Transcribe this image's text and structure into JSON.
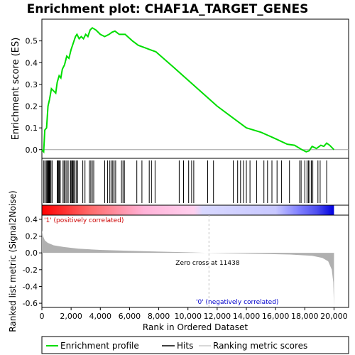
{
  "chart_data": {
    "type": "line",
    "title": "Enrichment plot: CHAF1A_TARGET_GENES",
    "es_panel": {
      "ylabel": "Enrichment score (ES)",
      "ylim": [
        -0.04,
        0.6
      ],
      "yticks": [
        "0.0",
        "0.1",
        "0.2",
        "0.3",
        "0.4",
        "0.5"
      ],
      "series_name": "Enrichment profile",
      "points": [
        [
          0,
          0.0
        ],
        [
          120,
          -0.01
        ],
        [
          200,
          0.09
        ],
        [
          320,
          0.1
        ],
        [
          420,
          0.2
        ],
        [
          520,
          0.23
        ],
        [
          650,
          0.28
        ],
        [
          800,
          0.27
        ],
        [
          950,
          0.26
        ],
        [
          1050,
          0.31
        ],
        [
          1180,
          0.34
        ],
        [
          1300,
          0.33
        ],
        [
          1400,
          0.37
        ],
        [
          1550,
          0.39
        ],
        [
          1700,
          0.43
        ],
        [
          1850,
          0.42
        ],
        [
          2000,
          0.46
        ],
        [
          2150,
          0.49
        ],
        [
          2300,
          0.52
        ],
        [
          2400,
          0.53
        ],
        [
          2550,
          0.51
        ],
        [
          2700,
          0.52
        ],
        [
          2850,
          0.51
        ],
        [
          3000,
          0.53
        ],
        [
          3150,
          0.52
        ],
        [
          3300,
          0.55
        ],
        [
          3450,
          0.56
        ],
        [
          3700,
          0.55
        ],
        [
          4000,
          0.53
        ],
        [
          4300,
          0.52
        ],
        [
          4600,
          0.53
        ],
        [
          4800,
          0.54
        ],
        [
          5000,
          0.545
        ],
        [
          5300,
          0.53
        ],
        [
          5700,
          0.53
        ],
        [
          6200,
          0.5
        ],
        [
          6600,
          0.48
        ],
        [
          7000,
          0.47
        ],
        [
          7400,
          0.46
        ],
        [
          7800,
          0.45
        ],
        [
          9000,
          0.38
        ],
        [
          10000,
          0.32
        ],
        [
          11000,
          0.26
        ],
        [
          12000,
          0.2
        ],
        [
          13000,
          0.15
        ],
        [
          14000,
          0.1
        ],
        [
          15000,
          0.08
        ],
        [
          16000,
          0.05
        ],
        [
          16800,
          0.025
        ],
        [
          17300,
          0.02
        ],
        [
          17800,
          0.0
        ],
        [
          18100,
          -0.01
        ],
        [
          18300,
          -0.005
        ],
        [
          18500,
          0.015
        ],
        [
          18800,
          0.005
        ],
        [
          19100,
          0.02
        ],
        [
          19300,
          0.015
        ],
        [
          19500,
          0.03
        ],
        [
          19700,
          0.02
        ],
        [
          20000,
          0.0
        ]
      ]
    },
    "hits_panel": {
      "series_name": "Hits",
      "positions": [
        130,
        210,
        300,
        360,
        420,
        460,
        510,
        560,
        620,
        700,
        1050,
        1100,
        1150,
        1200,
        1260,
        1450,
        1520,
        1600,
        1700,
        1800,
        1950,
        2000,
        2060,
        2120,
        2180,
        2250,
        2350,
        2450,
        2800,
        2950,
        3250,
        3350,
        3450,
        3550,
        4300,
        4500,
        4650,
        4750,
        4850,
        4950,
        5050,
        5450,
        5550,
        5650,
        6500,
        6850,
        7350,
        7500,
        7750,
        9400,
        9700,
        10050,
        10250,
        10400,
        11350,
        11750,
        13100,
        13400,
        13600,
        13800,
        14000,
        14250,
        14700,
        15200,
        15450,
        15750,
        16100,
        16400,
        16950,
        17650,
        17750,
        18000,
        18150,
        18250,
        18350,
        18450,
        18550,
        18900,
        19050,
        19500
      ],
      "label_positive": "'1' (positively correlated)",
      "label_negative": "'0' (negatively correlated)"
    },
    "metric_panel": {
      "ylabel": "Ranked list metric (Signal2Noise)",
      "ylim": [
        -0.65,
        0.45
      ],
      "yticks": [
        "0.4",
        "0.2",
        "0.0",
        "-0.2",
        "-0.4",
        "-0.6"
      ],
      "zero_cross_label": "Zero cross at 11438",
      "zero_cross": 11438,
      "points": [
        [
          0,
          0.27
        ],
        [
          80,
          0.2
        ],
        [
          200,
          0.15
        ],
        [
          400,
          0.12
        ],
        [
          800,
          0.09
        ],
        [
          1500,
          0.07
        ],
        [
          2500,
          0.05
        ],
        [
          4000,
          0.035
        ],
        [
          6000,
          0.025
        ],
        [
          8000,
          0.015
        ],
        [
          10000,
          0.007
        ],
        [
          11438,
          0.0
        ],
        [
          13000,
          -0.006
        ],
        [
          15000,
          -0.012
        ],
        [
          17000,
          -0.02
        ],
        [
          18500,
          -0.035
        ],
        [
          19200,
          -0.06
        ],
        [
          19600,
          -0.1
        ],
        [
          19850,
          -0.2
        ],
        [
          19950,
          -0.35
        ],
        [
          20000,
          -0.65
        ]
      ]
    },
    "xlabel": "Rank in Ordered Dataset",
    "xlim": [
      0,
      21000
    ],
    "xticks": [
      {
        "value": 0,
        "label": "0"
      },
      {
        "value": 2000,
        "label": "2,000"
      },
      {
        "value": 4000,
        "label": "4,000"
      },
      {
        "value": 6000,
        "label": "6,000"
      },
      {
        "value": 8000,
        "label": "8,000"
      },
      {
        "value": 10000,
        "label": "10,000"
      },
      {
        "value": 12000,
        "label": "12,000"
      },
      {
        "value": 14000,
        "label": "14,000"
      },
      {
        "value": 16000,
        "label": "16,000"
      },
      {
        "value": 18000,
        "label": "18,000"
      },
      {
        "value": 20000,
        "label": "20,000"
      }
    ],
    "legend": {
      "placement": "bottom",
      "entries": [
        "Enrichment profile",
        "Hits",
        "Ranking metric scores"
      ]
    },
    "colors": {
      "profile": "#00dd00",
      "hits": "#000000",
      "metric": "#b0b0b0",
      "zero_line": "#c0c0c0"
    }
  }
}
